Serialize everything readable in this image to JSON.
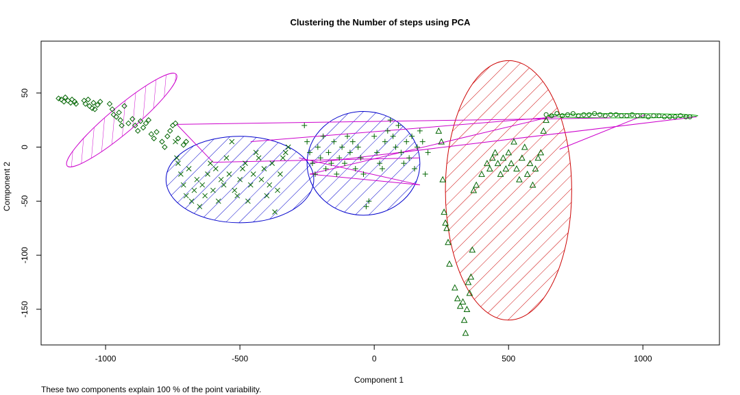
{
  "chart_data": {
    "type": "scatter",
    "title": "Clustering the Number of steps using PCA",
    "xlabel": "Component 1",
    "ylabel": "Component 2",
    "xlim": [
      -1240,
      1285
    ],
    "ylim": [
      -183,
      98
    ],
    "x_ticks": [
      -1000,
      -500,
      0,
      500,
      1000
    ],
    "y_ticks": [
      -150,
      -100,
      -50,
      0,
      50
    ],
    "x_tick_labels": [
      "-1000",
      "-500",
      "0",
      "500",
      "1000"
    ],
    "y_tick_labels": [
      "-150",
      "-100",
      "-50",
      "0",
      "50"
    ],
    "point_color": "#006400",
    "series": [
      {
        "marker": "diamond",
        "points": [
          [
            -1175,
            45
          ],
          [
            -1165,
            44
          ],
          [
            -1155,
            42
          ],
          [
            -1150,
            46
          ],
          [
            -1140,
            43
          ],
          [
            -1130,
            41
          ],
          [
            -1125,
            44
          ],
          [
            -1115,
            42
          ],
          [
            -1110,
            40
          ],
          [
            -1080,
            43
          ],
          [
            -1075,
            40
          ],
          [
            -1065,
            44
          ],
          [
            -1060,
            38
          ],
          [
            -1050,
            36
          ],
          [
            -1045,
            41
          ],
          [
            -1040,
            35
          ],
          [
            -1030,
            39
          ],
          [
            -1020,
            42
          ],
          [
            -985,
            40
          ],
          [
            -975,
            35
          ],
          [
            -970,
            30
          ],
          [
            -960,
            28
          ],
          [
            -950,
            32
          ],
          [
            -945,
            25
          ],
          [
            -940,
            20
          ],
          [
            -930,
            38
          ],
          [
            -915,
            22
          ],
          [
            -900,
            26
          ],
          [
            -890,
            20
          ],
          [
            -880,
            15
          ],
          [
            -870,
            24
          ],
          [
            -860,
            18
          ],
          [
            -850,
            22
          ],
          [
            -840,
            25
          ],
          [
            -830,
            12
          ],
          [
            -820,
            8
          ],
          [
            -810,
            14
          ],
          [
            -790,
            5
          ],
          [
            -780,
            0
          ],
          [
            -770,
            10
          ],
          [
            -760,
            15
          ],
          [
            -750,
            20
          ],
          [
            -740,
            22
          ],
          [
            -730,
            8
          ],
          [
            -710,
            2
          ],
          [
            -700,
            5
          ]
        ]
      },
      {
        "marker": "x",
        "points": [
          [
            -740,
            5
          ],
          [
            -735,
            -10
          ],
          [
            -730,
            -15
          ],
          [
            -720,
            -25
          ],
          [
            -710,
            -35
          ],
          [
            -700,
            -45
          ],
          [
            -690,
            -20
          ],
          [
            -680,
            -50
          ],
          [
            -670,
            -40
          ],
          [
            -660,
            -30
          ],
          [
            -650,
            -55
          ],
          [
            -640,
            -35
          ],
          [
            -630,
            -45
          ],
          [
            -620,
            -25
          ],
          [
            -610,
            -15
          ],
          [
            -600,
            -40
          ],
          [
            -590,
            -20
          ],
          [
            -580,
            -50
          ],
          [
            -570,
            -30
          ],
          [
            -560,
            -35
          ],
          [
            -550,
            -10
          ],
          [
            -540,
            -25
          ],
          [
            -530,
            5
          ],
          [
            -520,
            -40
          ],
          [
            -510,
            -45
          ],
          [
            -500,
            -30
          ],
          [
            -490,
            -20
          ],
          [
            -480,
            -15
          ],
          [
            -470,
            -50
          ],
          [
            -460,
            -35
          ],
          [
            -450,
            -25
          ],
          [
            -440,
            -5
          ],
          [
            -430,
            -10
          ],
          [
            -420,
            -30
          ],
          [
            -410,
            -20
          ],
          [
            -400,
            -45
          ],
          [
            -390,
            -35
          ],
          [
            -380,
            -15
          ],
          [
            -370,
            -60
          ],
          [
            -360,
            -40
          ],
          [
            -350,
            -25
          ],
          [
            -340,
            -10
          ],
          [
            -330,
            -5
          ],
          [
            -320,
            0
          ]
        ]
      },
      {
        "marker": "plus",
        "points": [
          [
            -260,
            20
          ],
          [
            -250,
            5
          ],
          [
            -240,
            -5
          ],
          [
            -230,
            -15
          ],
          [
            -220,
            -25
          ],
          [
            -210,
            0
          ],
          [
            -200,
            -10
          ],
          [
            -190,
            10
          ],
          [
            -180,
            -20
          ],
          [
            -170,
            -5
          ],
          [
            -160,
            -15
          ],
          [
            -150,
            5
          ],
          [
            -140,
            -25
          ],
          [
            -130,
            -10
          ],
          [
            -120,
            0
          ],
          [
            -110,
            -15
          ],
          [
            -100,
            10
          ],
          [
            -90,
            -5
          ],
          [
            -80,
            5
          ],
          [
            -70,
            -20
          ],
          [
            -60,
            0
          ],
          [
            -50,
            -10
          ],
          [
            -40,
            -25
          ],
          [
            -30,
            -55
          ],
          [
            -20,
            -50
          ],
          [
            0,
            10
          ],
          [
            10,
            -5
          ],
          [
            20,
            -15
          ],
          [
            30,
            -20
          ],
          [
            40,
            5
          ],
          [
            50,
            15
          ],
          [
            60,
            25
          ],
          [
            70,
            10
          ],
          [
            80,
            0
          ],
          [
            90,
            20
          ],
          [
            100,
            -5
          ],
          [
            110,
            -15
          ],
          [
            120,
            5
          ],
          [
            130,
            -10
          ],
          [
            140,
            10
          ],
          [
            150,
            -20
          ],
          [
            160,
            0
          ],
          [
            170,
            15
          ],
          [
            180,
            5
          ],
          [
            190,
            -25
          ],
          [
            200,
            -5
          ]
        ]
      },
      {
        "marker": "triangle",
        "points": [
          [
            240,
            15
          ],
          [
            250,
            5
          ],
          [
            255,
            -30
          ],
          [
            260,
            -60
          ],
          [
            265,
            -70
          ],
          [
            270,
            -75
          ],
          [
            275,
            -88
          ],
          [
            280,
            -108
          ],
          [
            300,
            -130
          ],
          [
            310,
            -140
          ],
          [
            320,
            -147
          ],
          [
            330,
            -143
          ],
          [
            335,
            -160
          ],
          [
            340,
            -172
          ],
          [
            345,
            -150
          ],
          [
            350,
            -125
          ],
          [
            355,
            -135
          ],
          [
            360,
            -120
          ],
          [
            365,
            -95
          ],
          [
            370,
            -40
          ],
          [
            380,
            -35
          ],
          [
            400,
            -25
          ],
          [
            420,
            -15
          ],
          [
            430,
            -20
          ],
          [
            440,
            -10
          ],
          [
            450,
            -5
          ],
          [
            460,
            -15
          ],
          [
            470,
            -25
          ],
          [
            480,
            -10
          ],
          [
            490,
            -20
          ],
          [
            500,
            -5
          ],
          [
            510,
            -15
          ],
          [
            520,
            5
          ],
          [
            530,
            -20
          ],
          [
            540,
            -30
          ],
          [
            550,
            -10
          ],
          [
            560,
            0
          ],
          [
            570,
            -25
          ],
          [
            580,
            -15
          ],
          [
            590,
            -35
          ],
          [
            600,
            -20
          ],
          [
            610,
            -10
          ],
          [
            620,
            -5
          ],
          [
            630,
            15
          ],
          [
            640,
            25
          ]
        ]
      },
      {
        "marker": "circle",
        "points": [
          [
            640,
            30
          ],
          [
            660,
            29
          ],
          [
            680,
            31
          ],
          [
            700,
            29
          ],
          [
            720,
            30
          ],
          [
            740,
            31
          ],
          [
            760,
            29
          ],
          [
            780,
            30
          ],
          [
            800,
            30
          ],
          [
            820,
            31
          ],
          [
            840,
            30
          ],
          [
            860,
            29
          ],
          [
            880,
            30
          ],
          [
            900,
            30
          ],
          [
            920,
            29
          ],
          [
            940,
            29
          ],
          [
            960,
            30
          ],
          [
            980,
            29
          ],
          [
            1000,
            29
          ],
          [
            1020,
            28
          ],
          [
            1040,
            29
          ],
          [
            1060,
            29
          ],
          [
            1080,
            28
          ],
          [
            1100,
            28
          ],
          [
            1120,
            28
          ],
          [
            1140,
            29
          ],
          [
            1160,
            28
          ],
          [
            1175,
            28
          ]
        ]
      }
    ],
    "clusters": [
      {
        "color": "#cc00cc",
        "cx": -940,
        "cy": 25,
        "rx": 265,
        "ry": 12,
        "angle_deg": -40
      },
      {
        "color": "#0000cc",
        "cx": -500,
        "cy": -30,
        "rx": 275,
        "ry": 40,
        "angle_deg": 0
      },
      {
        "color": "#0000cc",
        "cx": -40,
        "cy": -15,
        "rx": 210,
        "ry": 48,
        "angle_deg": 0
      },
      {
        "color": "#cc0000",
        "cx": 500,
        "cy": -40,
        "rx": 235,
        "ry": 120,
        "angle_deg": 0
      },
      {
        "color": "#00aa00",
        "cx": 925,
        "cy": 29,
        "rx": 280,
        "ry": 2,
        "angle_deg": 0
      }
    ],
    "connectors": {
      "color": "#cc00cc",
      "segments": [
        [
          [
            -735,
            21
          ],
          [
            880,
            27
          ]
        ],
        [
          [
            -735,
            21
          ],
          [
            -600,
            -14
          ]
        ],
        [
          [
            -600,
            -14
          ],
          [
            170,
            -10
          ]
        ],
        [
          [
            -280,
            -10
          ],
          [
            170,
            -35
          ]
        ],
        [
          [
            170,
            -35
          ],
          [
            -240,
            -25
          ]
        ],
        [
          [
            -240,
            -25
          ],
          [
            640,
            27
          ]
        ],
        [
          [
            -240,
            -15
          ],
          [
            1200,
            28
          ]
        ],
        [
          [
            -460,
            5
          ],
          [
            680,
            28
          ]
        ],
        [
          [
            690,
            -2
          ],
          [
            1010,
            30
          ]
        ]
      ]
    }
  },
  "footnote": "These two components explain 100 % of the point variability."
}
